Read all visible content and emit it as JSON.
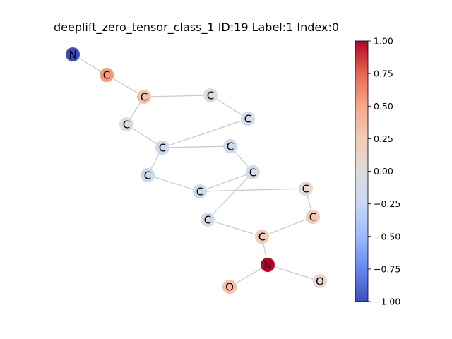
{
  "figure": {
    "title": "deeplift_zero_tensor_class_1 ID:19 Label:1 Index:0"
  },
  "graph": {
    "nodes": [
      {
        "id": 0,
        "label": "N",
        "value": -0.95,
        "color": "#3b4cc0"
      },
      {
        "id": 1,
        "label": "C",
        "value": 0.55,
        "color": "#f29c7c"
      },
      {
        "id": 2,
        "label": "C",
        "value": 0.3,
        "color": "#f4c2a8"
      },
      {
        "id": 3,
        "label": "C",
        "value": 0.0,
        "color": "#dddcdc"
      },
      {
        "id": 4,
        "label": "C",
        "value": 0.0,
        "color": "#dcdcdc"
      },
      {
        "id": 5,
        "label": "C",
        "value": -0.05,
        "color": "#d2dbe8"
      },
      {
        "id": 6,
        "label": "C",
        "value": -0.08,
        "color": "#cdd9ec"
      },
      {
        "id": 7,
        "label": "C",
        "value": -0.08,
        "color": "#cdd9ec"
      },
      {
        "id": 8,
        "label": "C",
        "value": -0.08,
        "color": "#cdd9ec"
      },
      {
        "id": 9,
        "label": "C",
        "value": -0.05,
        "color": "#d2dbe8"
      },
      {
        "id": 10,
        "label": "C",
        "value": -0.08,
        "color": "#cdd9ec"
      },
      {
        "id": 11,
        "label": "C",
        "value": 0.1,
        "color": "#e5d8d1"
      },
      {
        "id": 12,
        "label": "C",
        "value": 0.22,
        "color": "#f2cbb7"
      },
      {
        "id": 13,
        "label": "C",
        "value": -0.05,
        "color": "#d2dbe8"
      },
      {
        "id": 14,
        "label": "C",
        "value": 0.2,
        "color": "#f0cdbb"
      },
      {
        "id": 15,
        "label": "N",
        "value": 0.98,
        "color": "#b40426"
      },
      {
        "id": 16,
        "label": "O",
        "value": 0.35,
        "color": "#f5c0a7"
      },
      {
        "id": 17,
        "label": "O",
        "value": 0.1,
        "color": "#e7d7ce"
      }
    ],
    "edges": [
      [
        0,
        1
      ],
      [
        1,
        2
      ],
      [
        2,
        3
      ],
      [
        2,
        4
      ],
      [
        3,
        5
      ],
      [
        4,
        6
      ],
      [
        5,
        6
      ],
      [
        6,
        7
      ],
      [
        7,
        9
      ],
      [
        6,
        8
      ],
      [
        8,
        10
      ],
      [
        9,
        10
      ],
      [
        9,
        13
      ],
      [
        10,
        11
      ],
      [
        11,
        12
      ],
      [
        12,
        14
      ],
      [
        13,
        14
      ],
      [
        14,
        15
      ],
      [
        15,
        16
      ],
      [
        15,
        17
      ]
    ]
  },
  "colorbar": {
    "min": -1.0,
    "max": 1.0,
    "ticks": [
      "1.00",
      "0.75",
      "0.50",
      "0.25",
      "0.00",
      "−0.25",
      "−0.50",
      "−0.75",
      "−1.00"
    ],
    "tick_values": [
      1.0,
      0.75,
      0.5,
      0.25,
      0.0,
      -0.25,
      -0.5,
      -0.75,
      -1.0
    ],
    "colormap": "coolwarm",
    "color_stops": [
      "#3b4cc0",
      "#6688ee",
      "#9abbff",
      "#c9d7f0",
      "#dddcdc",
      "#f2cbb7",
      "#f7a889",
      "#e26952",
      "#b40426"
    ]
  }
}
